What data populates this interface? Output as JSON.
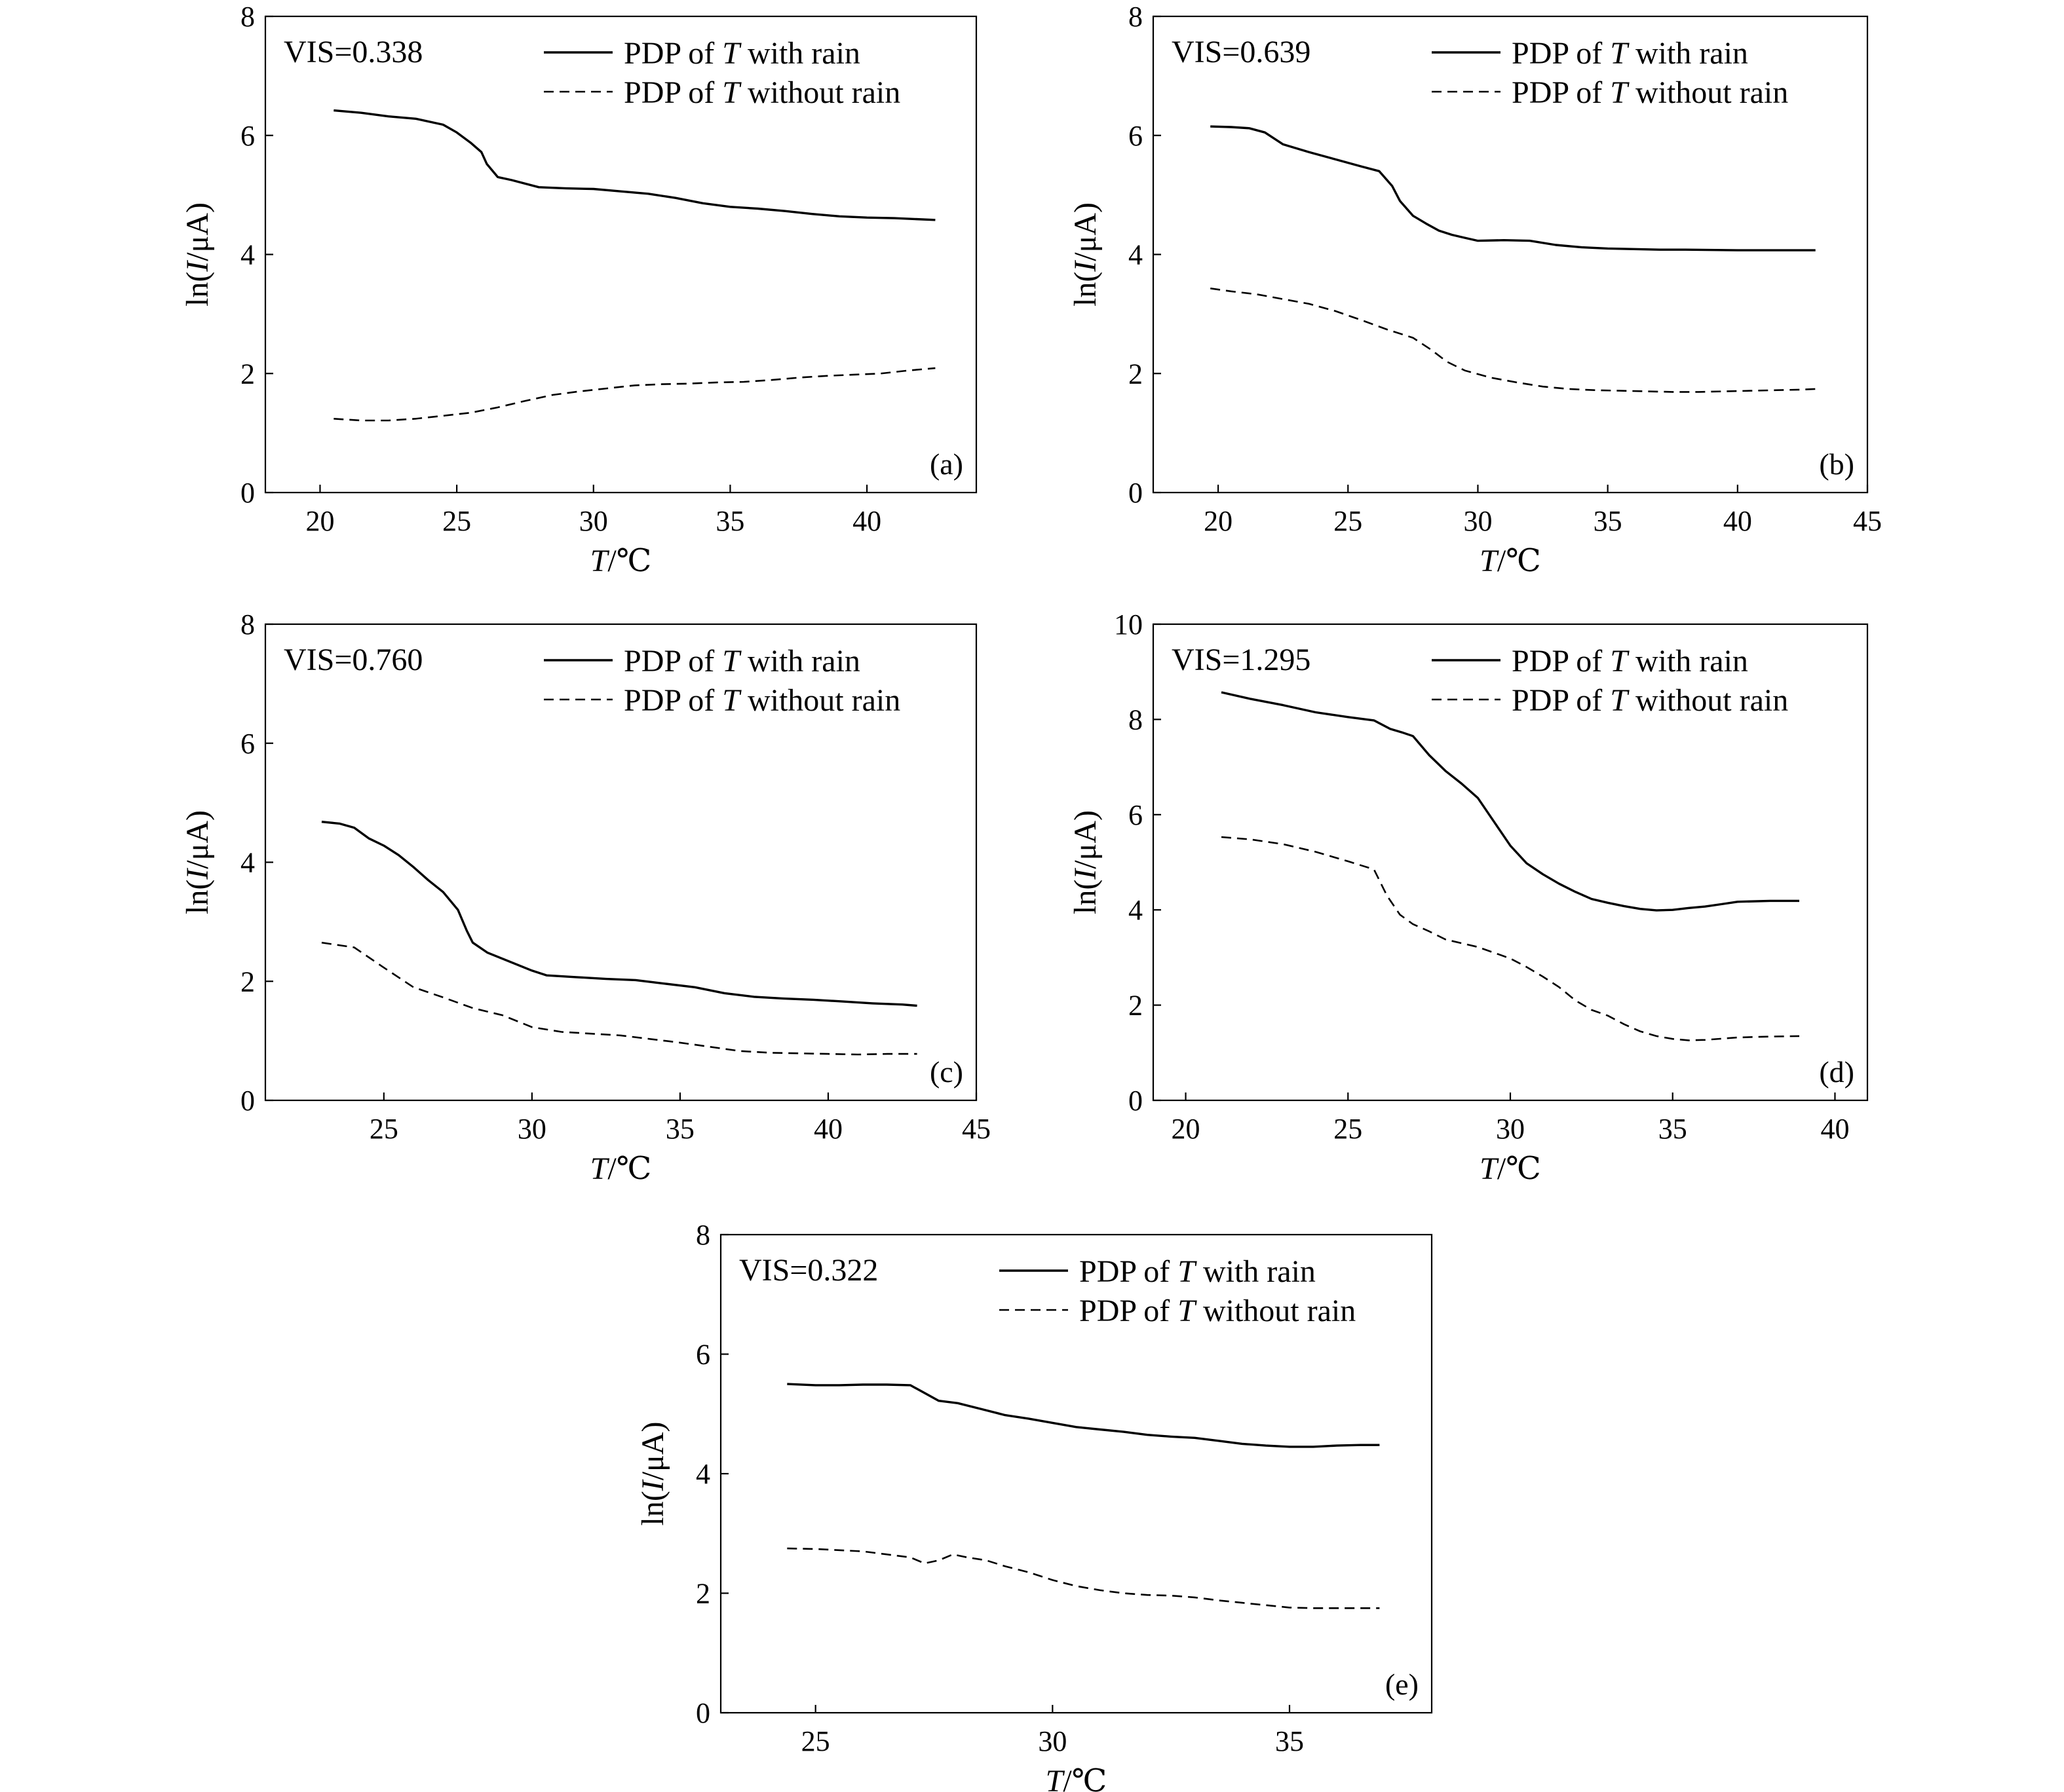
{
  "chart_data": [
    {
      "type": "line",
      "id": "a",
      "panel_label": "(a)",
      "vis_label": "VIS=0.338",
      "xlabel_italic": "T",
      "xlabel_unit": "/℃",
      "ylabel_pre": "ln(",
      "ylabel_italic": "I",
      "ylabel_post": "/μA)",
      "xlim": [
        18,
        44
      ],
      "ylim": [
        0,
        8
      ],
      "xticks": [
        20,
        25,
        30,
        35,
        40
      ],
      "yticks": [
        0,
        2,
        4,
        6,
        8
      ],
      "legend": [
        {
          "pre": "PDP of ",
          "italic": "T",
          "post": " with rain",
          "style": "solid"
        },
        {
          "pre": "PDP of ",
          "italic": "T",
          "post": " without rain",
          "style": "dashed"
        }
      ],
      "series": [
        {
          "name": "PDP of T with rain",
          "style": "solid",
          "x": [
            20.5,
            21.5,
            22.5,
            23.5,
            24.5,
            25.0,
            25.5,
            25.9,
            26.1,
            26.5,
            27.0,
            28.0,
            29.0,
            30.0,
            31.0,
            32.0,
            33.0,
            34.0,
            35.0,
            36.0,
            37.0,
            38.0,
            39.0,
            40.0,
            41.0,
            42.5
          ],
          "y": [
            6.42,
            6.38,
            6.32,
            6.28,
            6.18,
            6.05,
            5.88,
            5.72,
            5.52,
            5.3,
            5.25,
            5.13,
            5.11,
            5.1,
            5.06,
            5.02,
            4.95,
            4.86,
            4.8,
            4.77,
            4.73,
            4.68,
            4.64,
            4.62,
            4.61,
            4.58
          ]
        },
        {
          "name": "PDP of T without rain",
          "style": "dashed",
          "x": [
            20.5,
            21.5,
            22.5,
            23.5,
            24.5,
            25.5,
            26.5,
            27.5,
            28.5,
            29.5,
            30.5,
            31.5,
            32.5,
            33.5,
            34.5,
            35.5,
            36.5,
            37.5,
            38.5,
            39.5,
            40.5,
            41.5,
            42.5
          ],
          "y": [
            1.24,
            1.21,
            1.21,
            1.24,
            1.29,
            1.34,
            1.43,
            1.54,
            1.64,
            1.7,
            1.75,
            1.8,
            1.82,
            1.83,
            1.85,
            1.86,
            1.89,
            1.93,
            1.96,
            1.98,
            2.0,
            2.05,
            2.09
          ]
        }
      ]
    },
    {
      "type": "line",
      "id": "b",
      "panel_label": "(b)",
      "vis_label": "VIS=0.639",
      "xlabel_italic": "T",
      "xlabel_unit": "/℃",
      "ylabel_pre": "ln(",
      "ylabel_italic": "I",
      "ylabel_post": "/μA)",
      "xlim": [
        17.5,
        45
      ],
      "ylim": [
        0,
        8
      ],
      "xticks": [
        20,
        25,
        30,
        35,
        40,
        45
      ],
      "yticks": [
        0,
        2,
        4,
        6,
        8
      ],
      "legend": [
        {
          "pre": "PDP of ",
          "italic": "T",
          "post": " with rain",
          "style": "solid"
        },
        {
          "pre": "PDP of ",
          "italic": "T",
          "post": " without rain",
          "style": "dashed"
        }
      ],
      "series": [
        {
          "name": "PDP of T with rain",
          "style": "solid",
          "x": [
            19.7,
            20.5,
            21.2,
            21.8,
            22.5,
            23.5,
            24.5,
            25.5,
            26.2,
            26.7,
            27.0,
            27.5,
            28.0,
            28.5,
            29.0,
            29.5,
            30.0,
            31.0,
            32.0,
            33.0,
            34.0,
            35.0,
            36.0,
            37.0,
            38.0,
            40.0,
            42.0,
            43.0
          ],
          "y": [
            6.15,
            6.14,
            6.12,
            6.05,
            5.85,
            5.72,
            5.6,
            5.48,
            5.4,
            5.15,
            4.9,
            4.65,
            4.52,
            4.4,
            4.33,
            4.28,
            4.23,
            4.24,
            4.23,
            4.16,
            4.12,
            4.1,
            4.09,
            4.08,
            4.08,
            4.07,
            4.07,
            4.07
          ]
        },
        {
          "name": "PDP of T without rain",
          "style": "dashed",
          "x": [
            19.7,
            20.5,
            21.5,
            22.5,
            23.5,
            24.5,
            25.5,
            26.5,
            27.5,
            28.2,
            28.8,
            29.5,
            30.5,
            31.5,
            32.5,
            33.5,
            34.5,
            35.5,
            36.5,
            37.5,
            38.5,
            39.5,
            40.5,
            41.5,
            42.5,
            43.0
          ],
          "y": [
            3.43,
            3.38,
            3.33,
            3.25,
            3.17,
            3.05,
            2.9,
            2.74,
            2.6,
            2.4,
            2.2,
            2.05,
            1.93,
            1.85,
            1.78,
            1.74,
            1.72,
            1.71,
            1.7,
            1.69,
            1.69,
            1.7,
            1.71,
            1.72,
            1.73,
            1.74
          ]
        }
      ]
    },
    {
      "type": "line",
      "id": "c",
      "panel_label": "(c)",
      "vis_label": "VIS=0.760",
      "xlabel_italic": "T",
      "xlabel_unit": "/℃",
      "ylabel_pre": "ln(",
      "ylabel_italic": "I",
      "ylabel_post": "/μA)",
      "xlim": [
        21,
        45
      ],
      "ylim": [
        0,
        8
      ],
      "xticks": [
        25,
        30,
        35,
        40,
        45
      ],
      "yticks": [
        0,
        2,
        4,
        6,
        8
      ],
      "legend": [
        {
          "pre": "PDP of ",
          "italic": "T",
          "post": " with rain",
          "style": "solid"
        },
        {
          "pre": "PDP of ",
          "italic": "T",
          "post": " without rain",
          "style": "dashed"
        }
      ],
      "series": [
        {
          "name": "PDP of T with rain",
          "style": "solid",
          "x": [
            22.9,
            23.5,
            24.0,
            24.5,
            25.0,
            25.5,
            26.0,
            26.5,
            27.0,
            27.5,
            27.8,
            28.0,
            28.5,
            29.0,
            29.5,
            30.0,
            30.5,
            31.5,
            32.5,
            33.5,
            34.5,
            35.5,
            36.5,
            37.5,
            38.5,
            39.5,
            40.5,
            41.5,
            42.5,
            43.0
          ],
          "y": [
            4.68,
            4.65,
            4.58,
            4.4,
            4.28,
            4.12,
            3.92,
            3.7,
            3.5,
            3.2,
            2.85,
            2.65,
            2.48,
            2.38,
            2.28,
            2.18,
            2.1,
            2.07,
            2.04,
            2.02,
            1.96,
            1.9,
            1.8,
            1.74,
            1.71,
            1.69,
            1.66,
            1.63,
            1.61,
            1.59
          ]
        },
        {
          "name": "PDP of T without rain",
          "style": "dashed",
          "x": [
            22.9,
            24.0,
            25.0,
            26.0,
            27.0,
            28.0,
            29.0,
            30.0,
            31.0,
            32.0,
            33.0,
            34.0,
            35.0,
            36.0,
            37.0,
            38.0,
            39.0,
            40.0,
            41.0,
            42.0,
            43.0
          ],
          "y": [
            2.65,
            2.57,
            2.23,
            1.9,
            1.73,
            1.55,
            1.43,
            1.23,
            1.15,
            1.12,
            1.09,
            1.03,
            0.97,
            0.9,
            0.83,
            0.8,
            0.79,
            0.78,
            0.77,
            0.78,
            0.78
          ]
        }
      ]
    },
    {
      "type": "line",
      "id": "d",
      "panel_label": "(d)",
      "vis_label": "VIS=1.295",
      "xlabel_italic": "T",
      "xlabel_unit": "/℃",
      "ylabel_pre": "ln(",
      "ylabel_italic": "I",
      "ylabel_post": "/μA)",
      "xlim": [
        19,
        41
      ],
      "ylim": [
        0,
        10
      ],
      "xticks": [
        20,
        25,
        30,
        35,
        40
      ],
      "yticks": [
        0,
        2,
        4,
        6,
        8,
        10
      ],
      "legend": [
        {
          "pre": "PDP of ",
          "italic": "T",
          "post": " with rain",
          "style": "solid"
        },
        {
          "pre": "PDP of ",
          "italic": "T",
          "post": " without rain",
          "style": "dashed"
        }
      ],
      "series": [
        {
          "name": "PDP of T with rain",
          "style": "solid",
          "x": [
            21.1,
            22.0,
            23.0,
            24.0,
            25.0,
            25.8,
            26.3,
            26.7,
            27.0,
            27.5,
            28.0,
            28.5,
            29.0,
            29.5,
            30.0,
            30.5,
            31.0,
            31.5,
            32.0,
            32.5,
            33.0,
            33.5,
            34.0,
            34.5,
            35.0,
            35.5,
            36.0,
            36.5,
            37.0,
            38.0,
            38.9
          ],
          "y": [
            8.57,
            8.43,
            8.3,
            8.15,
            8.05,
            7.98,
            7.8,
            7.72,
            7.65,
            7.25,
            6.92,
            6.65,
            6.35,
            5.85,
            5.35,
            4.98,
            4.75,
            4.55,
            4.38,
            4.23,
            4.15,
            4.08,
            4.02,
            3.99,
            4.0,
            4.04,
            4.07,
            4.12,
            4.17,
            4.19,
            4.19
          ]
        },
        {
          "name": "PDP of T without rain",
          "style": "dashed",
          "x": [
            21.1,
            22.0,
            23.0,
            24.0,
            25.0,
            25.8,
            26.2,
            26.6,
            27.0,
            27.5,
            28.0,
            29.0,
            30.0,
            30.5,
            31.0,
            31.5,
            32.0,
            32.5,
            33.0,
            33.5,
            34.0,
            34.5,
            35.0,
            35.5,
            36.0,
            37.0,
            38.0,
            38.9
          ],
          "y": [
            5.53,
            5.48,
            5.38,
            5.22,
            5.02,
            4.85,
            4.3,
            3.9,
            3.7,
            3.55,
            3.38,
            3.22,
            2.98,
            2.8,
            2.6,
            2.38,
            2.1,
            1.9,
            1.78,
            1.6,
            1.45,
            1.35,
            1.29,
            1.26,
            1.27,
            1.32,
            1.34,
            1.35
          ]
        }
      ]
    },
    {
      "type": "line",
      "id": "e",
      "panel_label": "(e)",
      "vis_label": "VIS=0.322",
      "xlabel_italic": "T",
      "xlabel_unit": "/℃",
      "ylabel_pre": "ln(",
      "ylabel_italic": "I",
      "ylabel_post": "/μA)",
      "xlim": [
        23,
        38
      ],
      "ylim": [
        0,
        8
      ],
      "xticks": [
        25,
        30,
        35
      ],
      "yticks": [
        0,
        2,
        4,
        6,
        8
      ],
      "legend": [
        {
          "pre": "PDP of ",
          "italic": "T",
          "post": " with rain",
          "style": "solid"
        },
        {
          "pre": "PDP of ",
          "italic": "T",
          "post": " without rain",
          "style": "dashed"
        }
      ],
      "series": [
        {
          "name": "PDP of T with rain",
          "style": "solid",
          "x": [
            24.4,
            25.0,
            25.5,
            26.0,
            26.5,
            27.0,
            27.3,
            27.6,
            28.0,
            28.5,
            29.0,
            29.5,
            30.0,
            30.5,
            31.0,
            31.5,
            32.0,
            32.5,
            33.0,
            33.5,
            34.0,
            34.5,
            35.0,
            35.5,
            36.0,
            36.5,
            36.9
          ],
          "y": [
            5.5,
            5.48,
            5.48,
            5.49,
            5.49,
            5.48,
            5.35,
            5.22,
            5.18,
            5.08,
            4.98,
            4.92,
            4.85,
            4.78,
            4.74,
            4.7,
            4.65,
            4.62,
            4.6,
            4.55,
            4.5,
            4.47,
            4.45,
            4.45,
            4.47,
            4.48,
            4.48
          ]
        },
        {
          "name": "PDP of T without rain",
          "style": "dashed",
          "x": [
            24.4,
            25.0,
            25.5,
            26.0,
            26.5,
            27.0,
            27.3,
            27.6,
            27.9,
            28.2,
            28.6,
            29.0,
            29.5,
            30.0,
            30.5,
            31.0,
            31.5,
            32.0,
            32.5,
            33.0,
            33.5,
            34.0,
            34.5,
            35.0,
            35.5,
            36.0,
            36.5,
            36.9
          ],
          "y": [
            2.75,
            2.74,
            2.72,
            2.7,
            2.65,
            2.6,
            2.5,
            2.55,
            2.65,
            2.6,
            2.55,
            2.45,
            2.35,
            2.22,
            2.12,
            2.05,
            2.0,
            1.97,
            1.96,
            1.93,
            1.88,
            1.84,
            1.8,
            1.76,
            1.75,
            1.75,
            1.75,
            1.75
          ]
        }
      ]
    }
  ]
}
